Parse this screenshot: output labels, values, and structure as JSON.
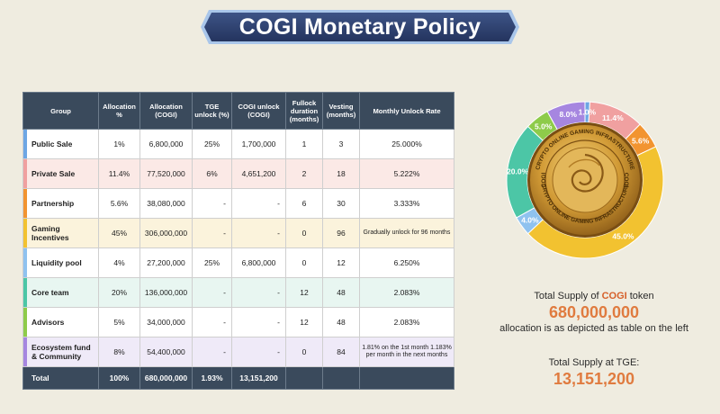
{
  "header": {
    "title": "COGI Monetary Policy"
  },
  "table": {
    "columns": [
      "Group",
      "Allocation %",
      "Allocation (COGI)",
      "TGE unlock (%)",
      "COGI unlock (COGI)",
      "Fullock duration (months)",
      "Vesting (months)",
      "Monthly Unlock Rate"
    ],
    "rows": [
      {
        "group": "Public Sale",
        "pct": "1%",
        "alloc": "6,800,000",
        "tge_pct": "25%",
        "tge_cogi": "1,700,000",
        "lock": "1",
        "vesting": "3",
        "rate": "25.000%",
        "color": "#6da6e4",
        "tint": "#ffffff"
      },
      {
        "group": "Private Sale",
        "pct": "11.4%",
        "alloc": "77,520,000",
        "tge_pct": "6%",
        "tge_cogi": "4,651,200",
        "lock": "2",
        "vesting": "18",
        "rate": "5.222%",
        "color": "#f0a0a0",
        "tint": "#fbe9e6"
      },
      {
        "group": "Partnership",
        "pct": "5.6%",
        "alloc": "38,080,000",
        "tge_pct": "-",
        "tge_cogi": "-",
        "lock": "6",
        "vesting": "30",
        "rate": "3.333%",
        "color": "#f29430",
        "tint": "#ffffff"
      },
      {
        "group": "Gaming Incentives",
        "pct": "45%",
        "alloc": "306,000,000",
        "tge_pct": "-",
        "tge_cogi": "-",
        "lock": "0",
        "vesting": "96",
        "rate": "Gradually unlock for 96 months",
        "color": "#f2c230",
        "tint": "#fbf3dc"
      },
      {
        "group": "Liquidity pool",
        "pct": "4%",
        "alloc": "27,200,000",
        "tge_pct": "25%",
        "tge_cogi": "6,800,000",
        "lock": "0",
        "vesting": "12",
        "rate": "6.250%",
        "color": "#8fc2ef",
        "tint": "#ffffff"
      },
      {
        "group": "Core team",
        "pct": "20%",
        "alloc": "136,000,000",
        "tge_pct": "-",
        "tge_cogi": "-",
        "lock": "12",
        "vesting": "48",
        "rate": "2.083%",
        "color": "#4cc6a6",
        "tint": "#e8f6f1"
      },
      {
        "group": "Advisors",
        "pct": "5%",
        "alloc": "34,000,000",
        "tge_pct": "-",
        "tge_cogi": "-",
        "lock": "12",
        "vesting": "48",
        "rate": "2.083%",
        "color": "#8ecb4a",
        "tint": "#ffffff"
      },
      {
        "group": "Ecosystem fund & Community",
        "pct": "8%",
        "alloc": "54,400,000",
        "tge_pct": "-",
        "tge_cogi": "-",
        "lock": "0",
        "vesting": "84",
        "rate": "1.81% on the 1st month 1.183% per month in the next months",
        "color": "#a686e0",
        "tint": "#efeaf8"
      }
    ],
    "total": {
      "group": "Total",
      "pct": "100%",
      "alloc": "680,000,000",
      "tge_pct": "1.93%",
      "tge_cogi": "13,151,200"
    }
  },
  "chart_data": {
    "type": "pie",
    "variant": "donut",
    "slices": [
      {
        "label": "1.0%",
        "value": 1.0,
        "color": "#6da6e4"
      },
      {
        "label": "11.4%",
        "value": 11.4,
        "color": "#f0a0a0"
      },
      {
        "label": "5.6%",
        "value": 5.6,
        "color": "#f29430"
      },
      {
        "label": "45.0%",
        "value": 45.0,
        "color": "#f2c230"
      },
      {
        "label": "4.0%",
        "value": 4.0,
        "color": "#8fc2ef"
      },
      {
        "label": "20.0%",
        "value": 20.0,
        "color": "#4cc6a6"
      },
      {
        "label": "5.0%",
        "value": 5.0,
        "color": "#8ecb4a"
      },
      {
        "label": "8.0%",
        "value": 8.0,
        "color": "#a686e0"
      }
    ]
  },
  "coin": {
    "ring_text_top": "CRYPTO ONLINE GAMING INFRASTRUCTURE",
    "ring_text_bottom": "CRYPTO ONLINE GAMING INFRASTRUCTURE",
    "brand": "COGI"
  },
  "summary": {
    "supply_prefix": "Total Supply of ",
    "supply_token": "COGI",
    "supply_suffix": " token",
    "supply_value": "680,000,000",
    "supply_note": "allocation is as depicted as table on the left",
    "tge_label": "Total Supply at TGE:",
    "tge_value": "13,151,200"
  },
  "colors": {
    "background": "#efece0",
    "table_header": "#3a4a5c",
    "accent_orange": "#e07b3f",
    "banner": "#2f4170"
  }
}
